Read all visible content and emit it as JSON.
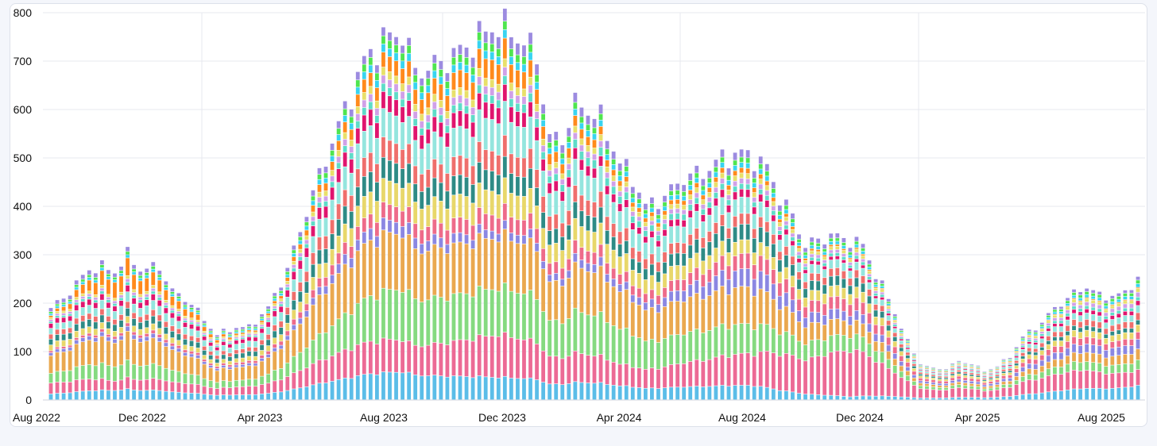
{
  "chart_data": {
    "type": "bar",
    "stacked": true,
    "title": "",
    "xlabel": "",
    "ylabel": "",
    "ylim": [
      0,
      800
    ],
    "grid": true,
    "legend": "none",
    "y_ticks": [
      "0",
      "100",
      "200",
      "300",
      "400",
      "500",
      "600",
      "700",
      "800"
    ],
    "x_tick_labels": [
      "Aug 2022",
      "Dec 2022",
      "Apr 2023",
      "Aug 2023",
      "Dec 2023",
      "Apr 2024",
      "Aug 2024",
      "Dec 2024",
      "Apr 2025",
      "Aug 2025"
    ],
    "x_range": [
      "2022-08",
      "2025-10"
    ],
    "bar_interval": "weekly",
    "series_colors": [
      "#5bbde8",
      "#ec6a95",
      "#85da80",
      "#eaa84f",
      "#8b87e2",
      "#ee6b8a",
      "#e8d76a",
      "#2e8b86",
      "#ef6f6c",
      "#94e5de",
      "#e0156e",
      "#5edcc8",
      "#d0a0e8",
      "#e8e06a",
      "#ff8a1c",
      "#38d4f0",
      "#4fe54f",
      "#9c8be0"
    ],
    "totals_anchors": [
      [
        0,
        190
      ],
      [
        2,
        210
      ],
      [
        4,
        240
      ],
      [
        6,
        270
      ],
      [
        8,
        275
      ],
      [
        10,
        265
      ],
      [
        12,
        300
      ],
      [
        14,
        270
      ],
      [
        17,
        275
      ],
      [
        19,
        225
      ],
      [
        22,
        200
      ],
      [
        24,
        165
      ],
      [
        26,
        135
      ],
      [
        29,
        150
      ],
      [
        31,
        150
      ],
      [
        34,
        190
      ],
      [
        37,
        270
      ],
      [
        40,
        390
      ],
      [
        43,
        500
      ],
      [
        46,
        600
      ],
      [
        49,
        700
      ],
      [
        52,
        745
      ],
      [
        55,
        760
      ],
      [
        57,
        680
      ],
      [
        60,
        690
      ],
      [
        64,
        720
      ],
      [
        68,
        760
      ],
      [
        70,
        775
      ],
      [
        72,
        760
      ],
      [
        74,
        740
      ],
      [
        76,
        710
      ],
      [
        78,
        540
      ],
      [
        80,
        540
      ],
      [
        82,
        610
      ],
      [
        84,
        600
      ],
      [
        86,
        580
      ],
      [
        89,
        490
      ],
      [
        91,
        460
      ],
      [
        93,
        400
      ],
      [
        96,
        420
      ],
      [
        99,
        460
      ],
      [
        102,
        470
      ],
      [
        105,
        500
      ],
      [
        108,
        510
      ],
      [
        110,
        500
      ],
      [
        112,
        480
      ],
      [
        114,
        420
      ],
      [
        116,
        380
      ],
      [
        118,
        320
      ],
      [
        120,
        330
      ],
      [
        122,
        340
      ],
      [
        125,
        330
      ],
      [
        127,
        320
      ],
      [
        129,
        260
      ],
      [
        131,
        210
      ],
      [
        133,
        150
      ],
      [
        134,
        120
      ],
      [
        136,
        75
      ],
      [
        138,
        65
      ],
      [
        140,
        65
      ],
      [
        142,
        80
      ],
      [
        144,
        75
      ],
      [
        146,
        60
      ],
      [
        148,
        70
      ],
      [
        150,
        90
      ],
      [
        152,
        130
      ],
      [
        155,
        160
      ],
      [
        157,
        190
      ],
      [
        160,
        220
      ],
      [
        162,
        235
      ],
      [
        164,
        215
      ],
      [
        166,
        215
      ],
      [
        168,
        220
      ],
      [
        169,
        240
      ],
      [
        170,
        250
      ]
    ],
    "share_anchors": [
      [
        0,
        [
          0.06,
          0.11,
          0.1,
          0.18,
          0.03,
          0.02,
          0.06,
          0.06,
          0.05,
          0.06,
          0.05,
          0.02,
          0.02,
          0.02,
          0.02,
          0.02,
          0.02,
          0.04
        ]
      ],
      [
        10,
        [
          0.07,
          0.07,
          0.11,
          0.18,
          0.03,
          0.02,
          0.04,
          0.05,
          0.04,
          0.06,
          0.04,
          0.02,
          0.02,
          0.02,
          0.12,
          0.02,
          0.02,
          0.03
        ]
      ],
      [
        30,
        [
          0.06,
          0.1,
          0.08,
          0.16,
          0.03,
          0.03,
          0.05,
          0.06,
          0.05,
          0.07,
          0.05,
          0.02,
          0.02,
          0.02,
          0.02,
          0.02,
          0.02,
          0.03
        ]
      ],
      [
        56,
        [
          0.07,
          0.08,
          0.13,
          0.14,
          0.03,
          0.04,
          0.06,
          0.05,
          0.05,
          0.07,
          0.04,
          0.02,
          0.02,
          0.02,
          0.04,
          0.02,
          0.02,
          0.02
        ]
      ],
      [
        70,
        [
          0.055,
          0.105,
          0.115,
          0.125,
          0.02,
          0.04,
          0.06,
          0.05,
          0.05,
          0.08,
          0.04,
          0.02,
          0.02,
          0.02,
          0.05,
          0.02,
          0.02,
          0.03
        ]
      ],
      [
        90,
        [
          0.055,
          0.085,
          0.14,
          0.15,
          0.03,
          0.04,
          0.07,
          0.05,
          0.05,
          0.08,
          0.03,
          0.03,
          0.02,
          0.02,
          0.02,
          0.02,
          0.02,
          0.03
        ]
      ],
      [
        110,
        [
          0.055,
          0.125,
          0.11,
          0.14,
          0.07,
          0.06,
          0.05,
          0.06,
          0.04,
          0.06,
          0.03,
          0.02,
          0.02,
          0.02,
          0.02,
          0.02,
          0.02,
          0.03
        ]
      ],
      [
        125,
        [
          0.02,
          0.3,
          0.1,
          0.09,
          0.06,
          0.08,
          0.07,
          0.06,
          0.05,
          0.05,
          0.02,
          0.02,
          0.02,
          0.02,
          0.01,
          0.02,
          0.02,
          0.03
        ]
      ],
      [
        140,
        [
          0.06,
          0.26,
          0.08,
          0.07,
          0.07,
          0.08,
          0.06,
          0.05,
          0.05,
          0.05,
          0.03,
          0.03,
          0.02,
          0.03,
          0.01,
          0.02,
          0.02,
          0.03
        ]
      ],
      [
        170,
        [
          0.12,
          0.13,
          0.08,
          0.09,
          0.08,
          0.06,
          0.06,
          0.04,
          0.06,
          0.06,
          0.04,
          0.03,
          0.04,
          0.03,
          0.01,
          0.03,
          0.03,
          0.03
        ]
      ]
    ]
  }
}
